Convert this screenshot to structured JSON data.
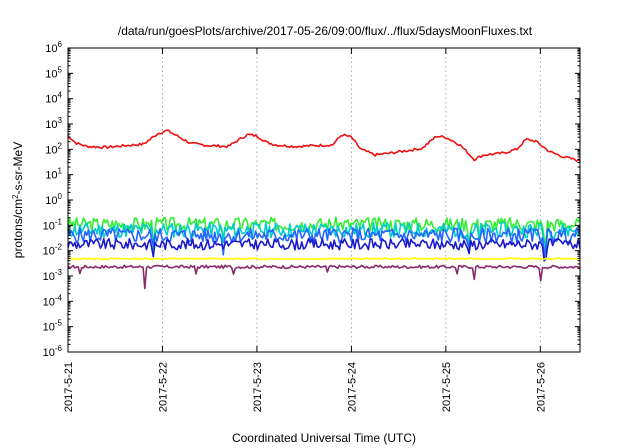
{
  "chart_data": {
    "type": "line",
    "title": "/data/run/goesPlots/archive/2017-05-26/09:00/flux/../flux/5daysMoonFluxes.txt",
    "xlabel": "Coordinated Universal Time (UTC)",
    "ylabel_parts": {
      "pre": "protons/cm",
      "sup": "2",
      "post": "-s-sr-MeV"
    },
    "yscale": "log",
    "ylim": [
      1e-06,
      1000000.0
    ],
    "y_ticks": [
      {
        "exp": "-6"
      },
      {
        "exp": "-5"
      },
      {
        "exp": "-4"
      },
      {
        "exp": "-3"
      },
      {
        "exp": "-2"
      },
      {
        "exp": "-1"
      },
      {
        "exp": "0"
      },
      {
        "exp": "1"
      },
      {
        "exp": "2"
      },
      {
        "exp": "3"
      },
      {
        "exp": "4"
      },
      {
        "exp": "5"
      },
      {
        "exp": "6"
      }
    ],
    "y_tick_base": "10",
    "xlim_days": [
      21.0,
      26.42
    ],
    "x_ticks": [
      "2017-5-21",
      "2017-5-22",
      "2017-5-23",
      "2017-5-24",
      "2017-5-25",
      "2017-5-26"
    ],
    "grid": true,
    "legend": "none",
    "series": [
      {
        "color": "#ee1111",
        "seed": 7,
        "noise": 0.05,
        "points": [
          [
            21.0,
            350
          ],
          [
            21.08,
            180
          ],
          [
            21.2,
            130
          ],
          [
            21.4,
            120
          ],
          [
            21.6,
            140
          ],
          [
            21.8,
            160
          ],
          [
            21.95,
            420
          ],
          [
            22.05,
            550
          ],
          [
            22.15,
            350
          ],
          [
            22.3,
            170
          ],
          [
            22.5,
            140
          ],
          [
            22.7,
            130
          ],
          [
            22.8,
            230
          ],
          [
            22.9,
            380
          ],
          [
            23.0,
            340
          ],
          [
            23.1,
            190
          ],
          [
            23.2,
            150
          ],
          [
            23.4,
            130
          ],
          [
            23.6,
            140
          ],
          [
            23.8,
            150
          ],
          [
            23.9,
            380
          ],
          [
            24.0,
            300
          ],
          [
            24.1,
            100
          ],
          [
            24.25,
            60
          ],
          [
            24.4,
            70
          ],
          [
            24.6,
            90
          ],
          [
            24.75,
            110
          ],
          [
            24.9,
            330
          ],
          [
            25.0,
            300
          ],
          [
            25.15,
            150
          ],
          [
            25.3,
            40
          ],
          [
            25.4,
            60
          ],
          [
            25.6,
            70
          ],
          [
            25.75,
            100
          ],
          [
            25.85,
            250
          ],
          [
            25.95,
            210
          ],
          [
            26.1,
            80
          ],
          [
            26.25,
            50
          ],
          [
            26.42,
            35
          ]
        ]
      },
      {
        "color": "#33ee33",
        "seed": 3,
        "noise": 0.28,
        "base": [
          [
            21.0,
            0.11
          ],
          [
            26.42,
            0.11
          ]
        ],
        "dips": [
          [
            21.9,
            0.03
          ],
          [
            22.65,
            0.03
          ],
          [
            25.25,
            0.02
          ],
          [
            25.35,
            0.04
          ],
          [
            26.05,
            0.03
          ]
        ]
      },
      {
        "color": "#00cccc",
        "seed": 11,
        "noise": 0.3,
        "base": [
          [
            21.0,
            0.065
          ],
          [
            26.42,
            0.065
          ]
        ],
        "dips": [
          [
            21.9,
            0.015
          ],
          [
            22.65,
            0.02
          ],
          [
            25.25,
            0.012
          ],
          [
            25.35,
            0.02
          ],
          [
            26.05,
            0.015
          ]
        ]
      },
      {
        "color": "#2266ff",
        "seed": 5,
        "noise": 0.3,
        "base": [
          [
            21.0,
            0.04
          ],
          [
            26.42,
            0.04
          ]
        ],
        "dips": [
          [
            21.9,
            0.01
          ],
          [
            22.65,
            0.012
          ],
          [
            25.25,
            0.008
          ],
          [
            25.35,
            0.012
          ],
          [
            26.05,
            0.01
          ]
        ]
      },
      {
        "color": "#1a1acc",
        "seed": 9,
        "noise": 0.22,
        "base": [
          [
            21.0,
            0.018
          ],
          [
            26.42,
            0.018
          ]
        ],
        "dips": [
          [
            21.9,
            0.006
          ],
          [
            25.25,
            0.005
          ],
          [
            26.05,
            0.006
          ]
        ]
      },
      {
        "color": "#ffff00",
        "seed": 13,
        "noise": 0.03,
        "base": [
          [
            21.0,
            0.0048
          ],
          [
            26.42,
            0.0048
          ]
        ],
        "dips": []
      },
      {
        "color": "#8a2a6a",
        "seed": 17,
        "noise": 0.06,
        "base": [
          [
            21.0,
            0.0023
          ],
          [
            26.42,
            0.0023
          ]
        ],
        "dips": [
          [
            21.13,
            0.0012
          ],
          [
            21.82,
            0.00035
          ],
          [
            22.35,
            0.0012
          ],
          [
            22.75,
            0.0012
          ],
          [
            23.75,
            0.0013
          ],
          [
            25.12,
            0.0012
          ],
          [
            25.3,
            0.0007
          ],
          [
            26.0,
            0.0006
          ]
        ]
      }
    ]
  }
}
